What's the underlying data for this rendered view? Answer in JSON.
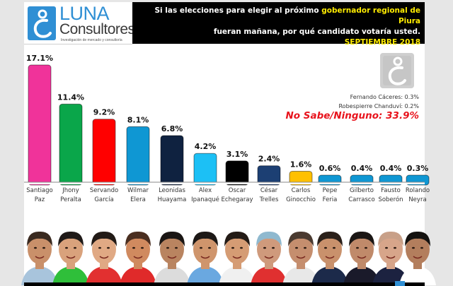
{
  "header": {
    "logo": {
      "name": "LUNA",
      "subname": "Consultores",
      "tagline": "Investigación de mercado y consultoría"
    },
    "question_line1_prefix": "Si las elecciones para elegir al próximo ",
    "question_line1_highlight": "gobernador regional de Piura",
    "question_line2": "fueran mañana, por qué candidato votaría usted.",
    "date": "SEPTIEMBRE 2018"
  },
  "notes": {
    "others": [
      "Fernando Cáceres: 0.3%",
      "Robespierre Chanduví: 0.2%"
    ],
    "no_sabe": "No Sabe/Ninguno: 33.9%"
  },
  "colors": {
    "accent_blue": "#2f8fd4",
    "highlight_yellow": "#ffec00",
    "no_sabe_red": "#e8141d"
  },
  "chart_data": {
    "type": "bar",
    "title": "Si las elecciones para elegir al próximo gobernador regional de Piura fueran mañana, por qué candidato votaría usted.",
    "subtitle": "SEPTIEMBRE 2018",
    "xlabel": "",
    "ylabel": "",
    "ylim": [
      0,
      17.1
    ],
    "grid": false,
    "categories": [
      [
        "Santiago",
        "Paz"
      ],
      [
        "Jhony",
        "Peralta"
      ],
      [
        "Servando",
        "García"
      ],
      [
        "Wilmar",
        "Elera"
      ],
      [
        "Leonidas",
        "Huayama"
      ],
      [
        "Alex",
        "Ipanaqué"
      ],
      [
        "Oscar",
        "Echegaray"
      ],
      [
        "César",
        "Trelles"
      ],
      [
        "Carlos",
        "Ginocchio"
      ],
      [
        "Pepe",
        "Feria"
      ],
      [
        "Gilberto",
        "Carrasco"
      ],
      [
        "Fausto",
        "Soberón"
      ],
      [
        "Rolando",
        "Neyra"
      ]
    ],
    "values": [
      17.1,
      11.4,
      9.2,
      8.1,
      6.8,
      4.2,
      3.1,
      2.4,
      1.6,
      0.6,
      0.4,
      0.4,
      0.3
    ],
    "labels": [
      "17.1%",
      "11.4%",
      "9.2%",
      "8.1%",
      "6.8%",
      "4.2%",
      "3.1%",
      "2.4%",
      "1.6%",
      "0.6%",
      "0.4%",
      "0.4%",
      "0.3%"
    ],
    "bar_colors": [
      "#f0339a",
      "#0aa64a",
      "#ff0000",
      "#0f97d3",
      "#0f2240",
      "#1cc0f5",
      "#000000",
      "#1c3f73",
      "#ffc000",
      "#0f97d3",
      "#0f97d3",
      "#0f97d3",
      "#0f97d3"
    ]
  },
  "photos": {
    "skin_tones": [
      "#c9906a",
      "#d9a27c",
      "#e0a984",
      "#d08a5f",
      "#b98460",
      "#cf956c",
      "#d59c74",
      "#cf9a7c",
      "#c58e6e",
      "#c9916c",
      "#c08a6a",
      "#d7a58a",
      "#b37e5d"
    ],
    "hair_colors": [
      "#3a2a20",
      "#1f1a18",
      "#221a16",
      "#4a2e20",
      "#1a1614",
      "#1c1816",
      "#231b16",
      "#8fb9cf",
      "#4a3a30",
      "#2a201a",
      "#1a1614",
      "#c8a088",
      "#141210"
    ],
    "shirt_colors": [
      "#a8c4dc",
      "#2fbf3a",
      "#e23030",
      "#e02a2a",
      "#dcdcdc",
      "#6aa8e0",
      "#f0f0f0",
      "#e03030",
      "#e8e8e8",
      "#1c2a4a",
      "#1a1a2a",
      "#1c2240",
      "#ffffff"
    ]
  }
}
